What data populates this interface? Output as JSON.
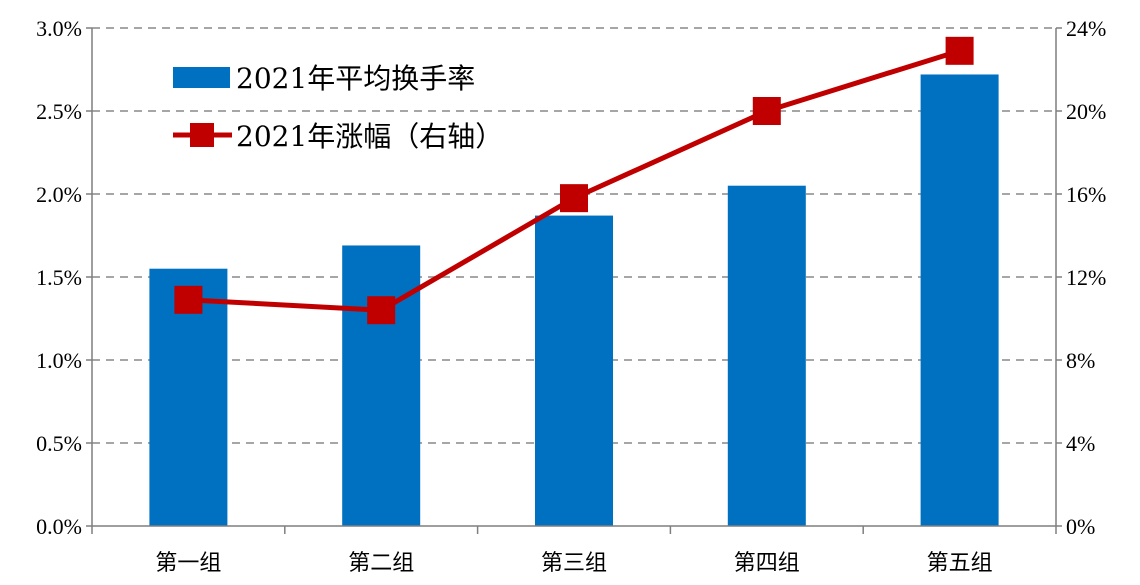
{
  "chart_data": {
    "type": "bar",
    "categories": [
      "第一组",
      "第二组",
      "第三组",
      "第四组",
      "第五组"
    ],
    "series": [
      {
        "name": "2021年平均换手率",
        "kind": "bar",
        "axis": "left",
        "values": [
          1.55,
          1.69,
          1.87,
          2.05,
          2.72
        ]
      },
      {
        "name": "2021年涨幅（右轴）",
        "kind": "line",
        "axis": "right",
        "values": [
          10.9,
          10.4,
          15.8,
          20.0,
          22.9
        ]
      }
    ],
    "y_left": {
      "lim": [
        0,
        3.0
      ],
      "ticks": [
        0,
        0.5,
        1.0,
        1.5,
        2.0,
        2.5,
        3.0
      ],
      "tick_labels": [
        "0.0%",
        "0.5%",
        "1.0%",
        "1.5%",
        "2.0%",
        "2.5%",
        "3.0%"
      ]
    },
    "y_right": {
      "lim": [
        0,
        24
      ],
      "ticks": [
        0,
        4,
        8,
        12,
        16,
        20,
        24
      ],
      "tick_labels": [
        "0%",
        "4%",
        "8%",
        "12%",
        "16%",
        "20%",
        "24%"
      ]
    },
    "grid": "horizontal dashed",
    "legend_position": "top-left",
    "colors": {
      "bar": "#0070C0",
      "line": "#C00000",
      "grid": "#A6A6A6",
      "axis": "#7F7F7F"
    }
  }
}
